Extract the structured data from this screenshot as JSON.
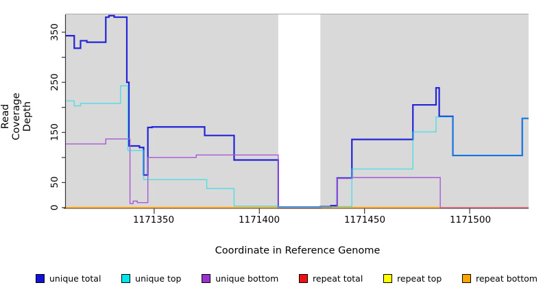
{
  "axes": {
    "x_label": "Coordinate in Reference Genome",
    "y_label": "Read Coverage Depth",
    "x_ticks": [
      "1171350",
      "1171400",
      "1171450",
      "1171500"
    ],
    "x_tick_values": [
      1171350,
      1171400,
      1171450,
      1171500
    ],
    "y_ticks": [
      "0",
      "50",
      "150",
      "250",
      "350"
    ],
    "y_tick_values": [
      0,
      50,
      150,
      250,
      350
    ],
    "y_all_tick_values": [
      0,
      50,
      100,
      150,
      200,
      250,
      300,
      350
    ]
  },
  "legend": {
    "items": [
      {
        "label": "unique total",
        "color": "#1212d6"
      },
      {
        "label": "unique top",
        "color": "#00e5ee"
      },
      {
        "label": "unique bottom",
        "color": "#9a32cd"
      },
      {
        "label": "repeat total",
        "color": "#ee1111"
      },
      {
        "label": "repeat top",
        "color": "#ffff00"
      },
      {
        "label": "repeat bottom",
        "color": "#ffa500"
      }
    ]
  },
  "chart_data": {
    "type": "line",
    "title": "",
    "xlabel": "Coordinate in Reference Genome",
    "ylabel": "Read Coverage Depth",
    "xlim": [
      1171308,
      1171528
    ],
    "ylim": [
      0,
      386
    ],
    "plot_background": "#d9d9d9",
    "gap_region": {
      "from": 1171409,
      "to": 1171429,
      "color": "#ffffff"
    },
    "legend_position": "bottom",
    "grid": false,
    "series": [
      {
        "name": "repeat top",
        "color": "#ffff00",
        "alpha": 1,
        "width": 1.6,
        "points": [
          [
            1171308,
            0
          ],
          [
            1171528,
            0
          ]
        ]
      },
      {
        "name": "repeat total",
        "color": "#d8538c",
        "alpha": 1,
        "width": 1.6,
        "points": [
          [
            1171308,
            0
          ],
          [
            1171528,
            0
          ]
        ]
      },
      {
        "name": "repeat bottom",
        "color": "#ff9d0a",
        "alpha": 1,
        "width": 2,
        "points": [
          [
            1171308,
            0
          ],
          [
            1171486,
            0
          ]
        ]
      },
      {
        "name": "unique total",
        "color": "#2222d8",
        "alpha": 1,
        "width": 2.2,
        "points": [
          [
            1171308,
            343
          ],
          [
            1171312,
            318
          ],
          [
            1171315,
            333
          ],
          [
            1171318,
            330
          ],
          [
            1171327,
            380
          ],
          [
            1171328.5,
            383
          ],
          [
            1171331,
            380
          ],
          [
            1171337,
            250
          ],
          [
            1171338,
            123
          ],
          [
            1171343,
            120
          ],
          [
            1171345,
            65
          ],
          [
            1171347,
            160
          ],
          [
            1171349,
            161
          ],
          [
            1171374,
            144
          ],
          [
            1171388,
            95
          ],
          [
            1171409,
            1
          ],
          [
            1171429,
            2
          ],
          [
            1171434,
            4
          ],
          [
            1171437,
            59
          ],
          [
            1171444,
            136
          ],
          [
            1171473,
            205
          ],
          [
            1171484,
            239
          ],
          [
            1171485.5,
            182
          ],
          [
            1171492,
            104
          ],
          [
            1171525,
            178
          ],
          [
            1171528,
            178
          ]
        ]
      },
      {
        "name": "unique bottom",
        "color": "#a758d8",
        "alpha": 1,
        "width": 1.4,
        "points": [
          [
            1171308,
            127
          ],
          [
            1171327,
            137
          ],
          [
            1171338.5,
            8
          ],
          [
            1171340,
            13
          ],
          [
            1171342,
            10
          ],
          [
            1171347,
            100
          ],
          [
            1171370,
            105
          ],
          [
            1171409,
            1
          ],
          [
            1171429,
            2
          ],
          [
            1171437,
            58
          ],
          [
            1171444,
            60
          ],
          [
            1171486,
            0
          ]
        ]
      },
      {
        "name": "unique top",
        "color": "#00e0ea",
        "alpha": 0.6,
        "width": 1.5,
        "points": [
          [
            1171308,
            213
          ],
          [
            1171312,
            203
          ],
          [
            1171315,
            208
          ],
          [
            1171334,
            243
          ],
          [
            1171337.5,
            114
          ],
          [
            1171345,
            56
          ],
          [
            1171375,
            38
          ],
          [
            1171388,
            3
          ],
          [
            1171409,
            1
          ],
          [
            1171429,
            2
          ],
          [
            1171444,
            77
          ],
          [
            1171473,
            151
          ],
          [
            1171484,
            181
          ],
          [
            1171492,
            104
          ],
          [
            1171525,
            178
          ],
          [
            1171528,
            178
          ]
        ]
      }
    ]
  }
}
